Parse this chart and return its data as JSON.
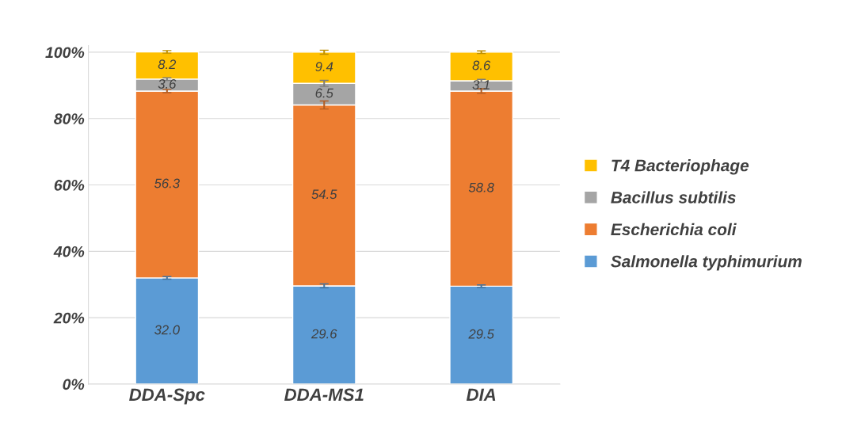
{
  "chart_data": {
    "type": "bar",
    "stacked": true,
    "categories": [
      "DDA-Spc",
      "DDA-MS1",
      "DIA"
    ],
    "series": [
      {
        "name": "Salmonella typhimurium",
        "color": "#5b9bd5",
        "values": [
          32.0,
          29.6,
          29.5
        ],
        "value_labels": [
          "32.0",
          "29.6",
          "29.5"
        ],
        "errors": [
          0.4,
          0.6,
          0.4
        ]
      },
      {
        "name": "Escherichia coli",
        "color": "#ed7d31",
        "values": [
          56.3,
          54.5,
          58.8
        ],
        "value_labels": [
          "56.3",
          "54.5",
          "58.8"
        ],
        "errors": [
          0.5,
          1.2,
          0.7
        ]
      },
      {
        "name": "Bacillus subtilis",
        "color": "#a5a5a5",
        "values": [
          3.6,
          6.5,
          3.1
        ],
        "value_labels": [
          "3.6",
          "6.5",
          "3.1"
        ],
        "errors": [
          0.4,
          0.9,
          0.4
        ]
      },
      {
        "name": "T4 Bacteriophage",
        "color": "#ffc000",
        "values": [
          8.2,
          9.4,
          8.6
        ],
        "value_labels": [
          "8.2",
          "9.4",
          "8.6"
        ],
        "errors": [
          0.4,
          0.6,
          0.4
        ]
      }
    ],
    "ylim": [
      0,
      102
    ],
    "yticks": [
      {
        "value": 0,
        "label": "0%"
      },
      {
        "value": 20,
        "label": "20%"
      },
      {
        "value": 40,
        "label": "40%"
      },
      {
        "value": 60,
        "label": "60%"
      },
      {
        "value": 80,
        "label": "80%"
      },
      {
        "value": 100,
        "label": "100%"
      }
    ],
    "grid": "y",
    "legend": "right"
  }
}
